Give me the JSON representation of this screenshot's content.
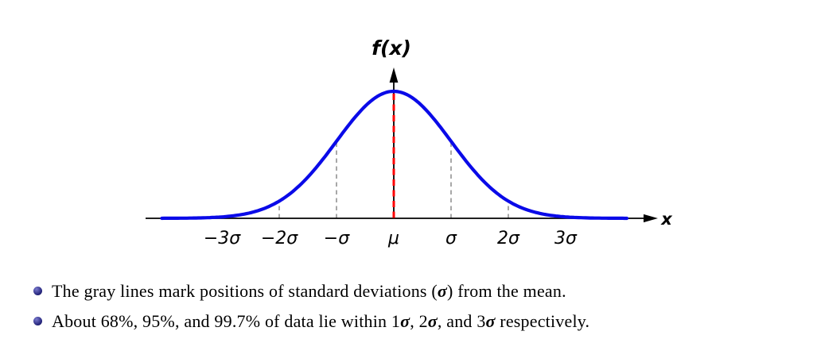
{
  "colors": {
    "background": "#ffffff",
    "curve": "#0a0ae8",
    "mean_line": "#ff0000",
    "guide": "#a8a8a8",
    "axis": "#000000",
    "text": "#000000",
    "bullet": "#26267d"
  },
  "chart_data": {
    "type": "line",
    "function": "normal_pdf",
    "title": "",
    "xlabel": "x",
    "ylabel": "f(x)",
    "x_unit": "sigma",
    "x_range_sigma": [
      -4.05,
      4.1
    ],
    "ylim": [
      0,
      1
    ],
    "grid": false,
    "legend": "none",
    "peak_label": "μ",
    "x_ticks": [
      {
        "pos": -3,
        "label": "−3σ"
      },
      {
        "pos": -2,
        "label": "−2σ"
      },
      {
        "pos": -1,
        "label": "−σ"
      },
      {
        "pos": 0,
        "label": "μ"
      },
      {
        "pos": 1,
        "label": "σ"
      },
      {
        "pos": 2,
        "label": "2σ"
      },
      {
        "pos": 3,
        "label": "3σ"
      }
    ],
    "gray_guides_sigma": [
      -3,
      -2,
      -1,
      1,
      2,
      3
    ],
    "mean_guide_sigma": 0,
    "samples": {
      "x_sigma": [
        -4,
        -3.5,
        -3,
        -2.5,
        -2,
        -1.5,
        -1,
        -0.5,
        0,
        0.5,
        1,
        1.5,
        2,
        2.5,
        3,
        3.5,
        4
      ],
      "f_relative": [
        0.0003,
        0.0022,
        0.0111,
        0.0439,
        0.1353,
        0.3247,
        0.6065,
        0.8825,
        1.0,
        0.8825,
        0.6065,
        0.3247,
        0.1353,
        0.0439,
        0.0111,
        0.0022,
        0.0003
      ]
    }
  },
  "notes": [
    {
      "segments": [
        {
          "text": "The gray lines mark positions of standard deviations (",
          "math": false
        },
        {
          "text": "σ",
          "math": true
        },
        {
          "text": ") from the mean.",
          "math": false
        }
      ]
    },
    {
      "segments": [
        {
          "text": "About 68%, 95%, and 99.7% of data lie within 1",
          "math": false
        },
        {
          "text": "σ",
          "math": true
        },
        {
          "text": ", 2",
          "math": false
        },
        {
          "text": "σ",
          "math": true
        },
        {
          "text": ", and 3",
          "math": false
        },
        {
          "text": "σ",
          "math": true
        },
        {
          "text": " respectively.",
          "math": false
        }
      ]
    }
  ]
}
